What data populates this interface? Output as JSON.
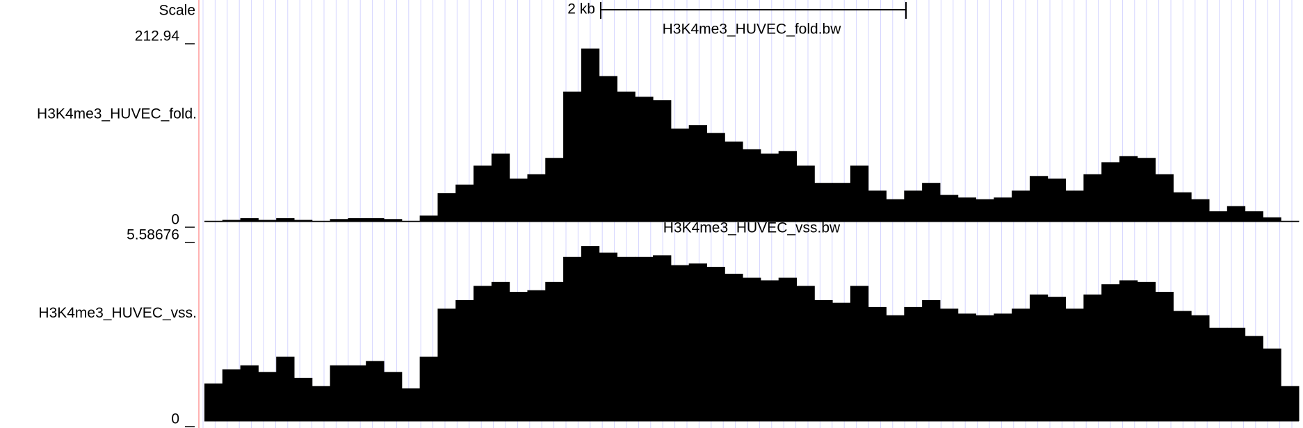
{
  "scale": {
    "label": "Scale",
    "bar_label": "2 kb"
  },
  "chart_data": [
    {
      "type": "area",
      "title": "H3K4me3_HUVEC_fold.bw",
      "y_label": "H3K4me3_HUVEC_fold.",
      "color": "#000000",
      "ylim": [
        0,
        212.94
      ],
      "yticks": [
        0,
        212.94
      ],
      "values": [
        1,
        2,
        4,
        2,
        4,
        2,
        1,
        3,
        4,
        4,
        3,
        1,
        7,
        33,
        43,
        65,
        79,
        50,
        55,
        74,
        151,
        201,
        169,
        151,
        145,
        141,
        108,
        112,
        103,
        93,
        84,
        79,
        82,
        65,
        45,
        45,
        65,
        36,
        26,
        36,
        45,
        31,
        28,
        26,
        28,
        36,
        53,
        50,
        36,
        55,
        69,
        76,
        74,
        55,
        34,
        26,
        12,
        18,
        12,
        5,
        1
      ]
    },
    {
      "type": "area",
      "title": "H3K4me3_HUVEC_vss.bw",
      "y_label": "H3K4me3_HUVEC_vss.",
      "color": "#000000",
      "ylim": [
        0,
        5.58676
      ],
      "yticks": [
        0,
        5.58676
      ],
      "values": [
        1.14,
        1.57,
        1.69,
        1.49,
        1.95,
        1.31,
        1.06,
        1.69,
        1.69,
        1.82,
        1.49,
        0.99,
        1.95,
        3.41,
        3.67,
        4.1,
        4.22,
        3.92,
        3.97,
        4.22,
        4.98,
        5.31,
        5.11,
        4.98,
        4.98,
        5.03,
        4.73,
        4.78,
        4.68,
        4.47,
        4.35,
        4.27,
        4.35,
        4.1,
        3.67,
        3.59,
        4.1,
        3.46,
        3.21,
        3.46,
        3.67,
        3.41,
        3.26,
        3.21,
        3.26,
        3.41,
        3.84,
        3.77,
        3.41,
        3.84,
        4.15,
        4.27,
        4.22,
        3.92,
        3.34,
        3.21,
        2.83,
        2.83,
        2.58,
        2.2,
        1.06
      ]
    }
  ]
}
